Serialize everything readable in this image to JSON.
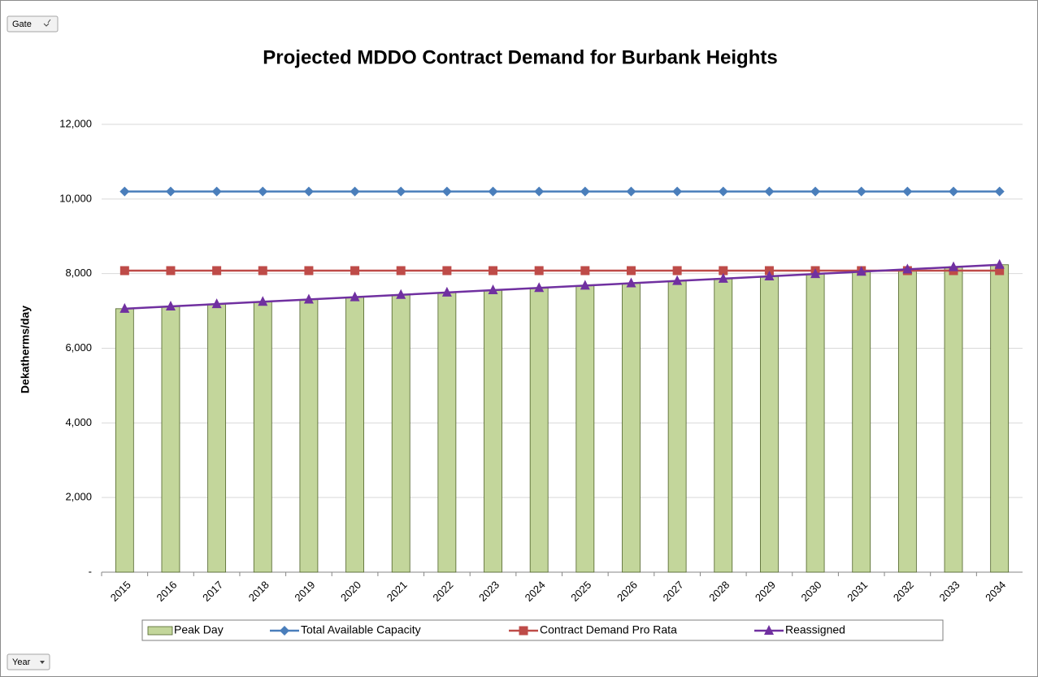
{
  "chart_data": {
    "type": "combo",
    "title": "Projected MDDO Contract Demand for Burbank Heights",
    "y_label": "Dekatherms/day",
    "field_buttons": [
      "Gate",
      "Year"
    ],
    "categories": [
      "2015",
      "2016",
      "2017",
      "2018",
      "2019",
      "2020",
      "2021",
      "2022",
      "2023",
      "2024",
      "2025",
      "2026",
      "2027",
      "2028",
      "2029",
      "2030",
      "2031",
      "2032",
      "2033",
      "2034"
    ],
    "series": [
      {
        "name": "Peak Day",
        "type": "bar",
        "color": "#c3d69b",
        "values": [
          7060,
          7122,
          7184,
          7246,
          7308,
          7370,
          7432,
          7494,
          7556,
          7618,
          7680,
          7742,
          7804,
          7866,
          7928,
          7990,
          8052,
          8114,
          8176,
          8238
        ]
      },
      {
        "name": "Total Available Capacity",
        "type": "line",
        "marker": "diamond",
        "color": "#4a7ebb",
        "values": [
          10200,
          10200,
          10200,
          10200,
          10200,
          10200,
          10200,
          10200,
          10200,
          10200,
          10200,
          10200,
          10200,
          10200,
          10200,
          10200,
          10200,
          10200,
          10200,
          10200
        ]
      },
      {
        "name": "Contract Demand Pro Rata",
        "type": "line",
        "marker": "square",
        "color": "#be4b48",
        "values": [
          8080,
          8080,
          8080,
          8080,
          8080,
          8080,
          8080,
          8080,
          8080,
          8080,
          8080,
          8080,
          8080,
          8080,
          8080,
          8080,
          8080,
          8080,
          8080,
          8080
        ]
      },
      {
        "name": "Reassigned",
        "type": "line",
        "marker": "triangle",
        "color": "#7030a0",
        "values": [
          7060,
          7122,
          7184,
          7246,
          7308,
          7370,
          7432,
          7494,
          7556,
          7618,
          7680,
          7742,
          7804,
          7866,
          7928,
          7990,
          8052,
          8114,
          8176,
          8238
        ]
      }
    ],
    "ylim": [
      0,
      12000
    ],
    "yticks": [
      {
        "value": 0,
        "label": "-"
      },
      {
        "value": 2000,
        "label": "2,000"
      },
      {
        "value": 4000,
        "label": "4,000"
      },
      {
        "value": 6000,
        "label": "6,000"
      },
      {
        "value": 8000,
        "label": "8,000"
      },
      {
        "value": 10000,
        "label": "10,000"
      },
      {
        "value": 12000,
        "label": "12,000"
      }
    ],
    "grid": true
  }
}
